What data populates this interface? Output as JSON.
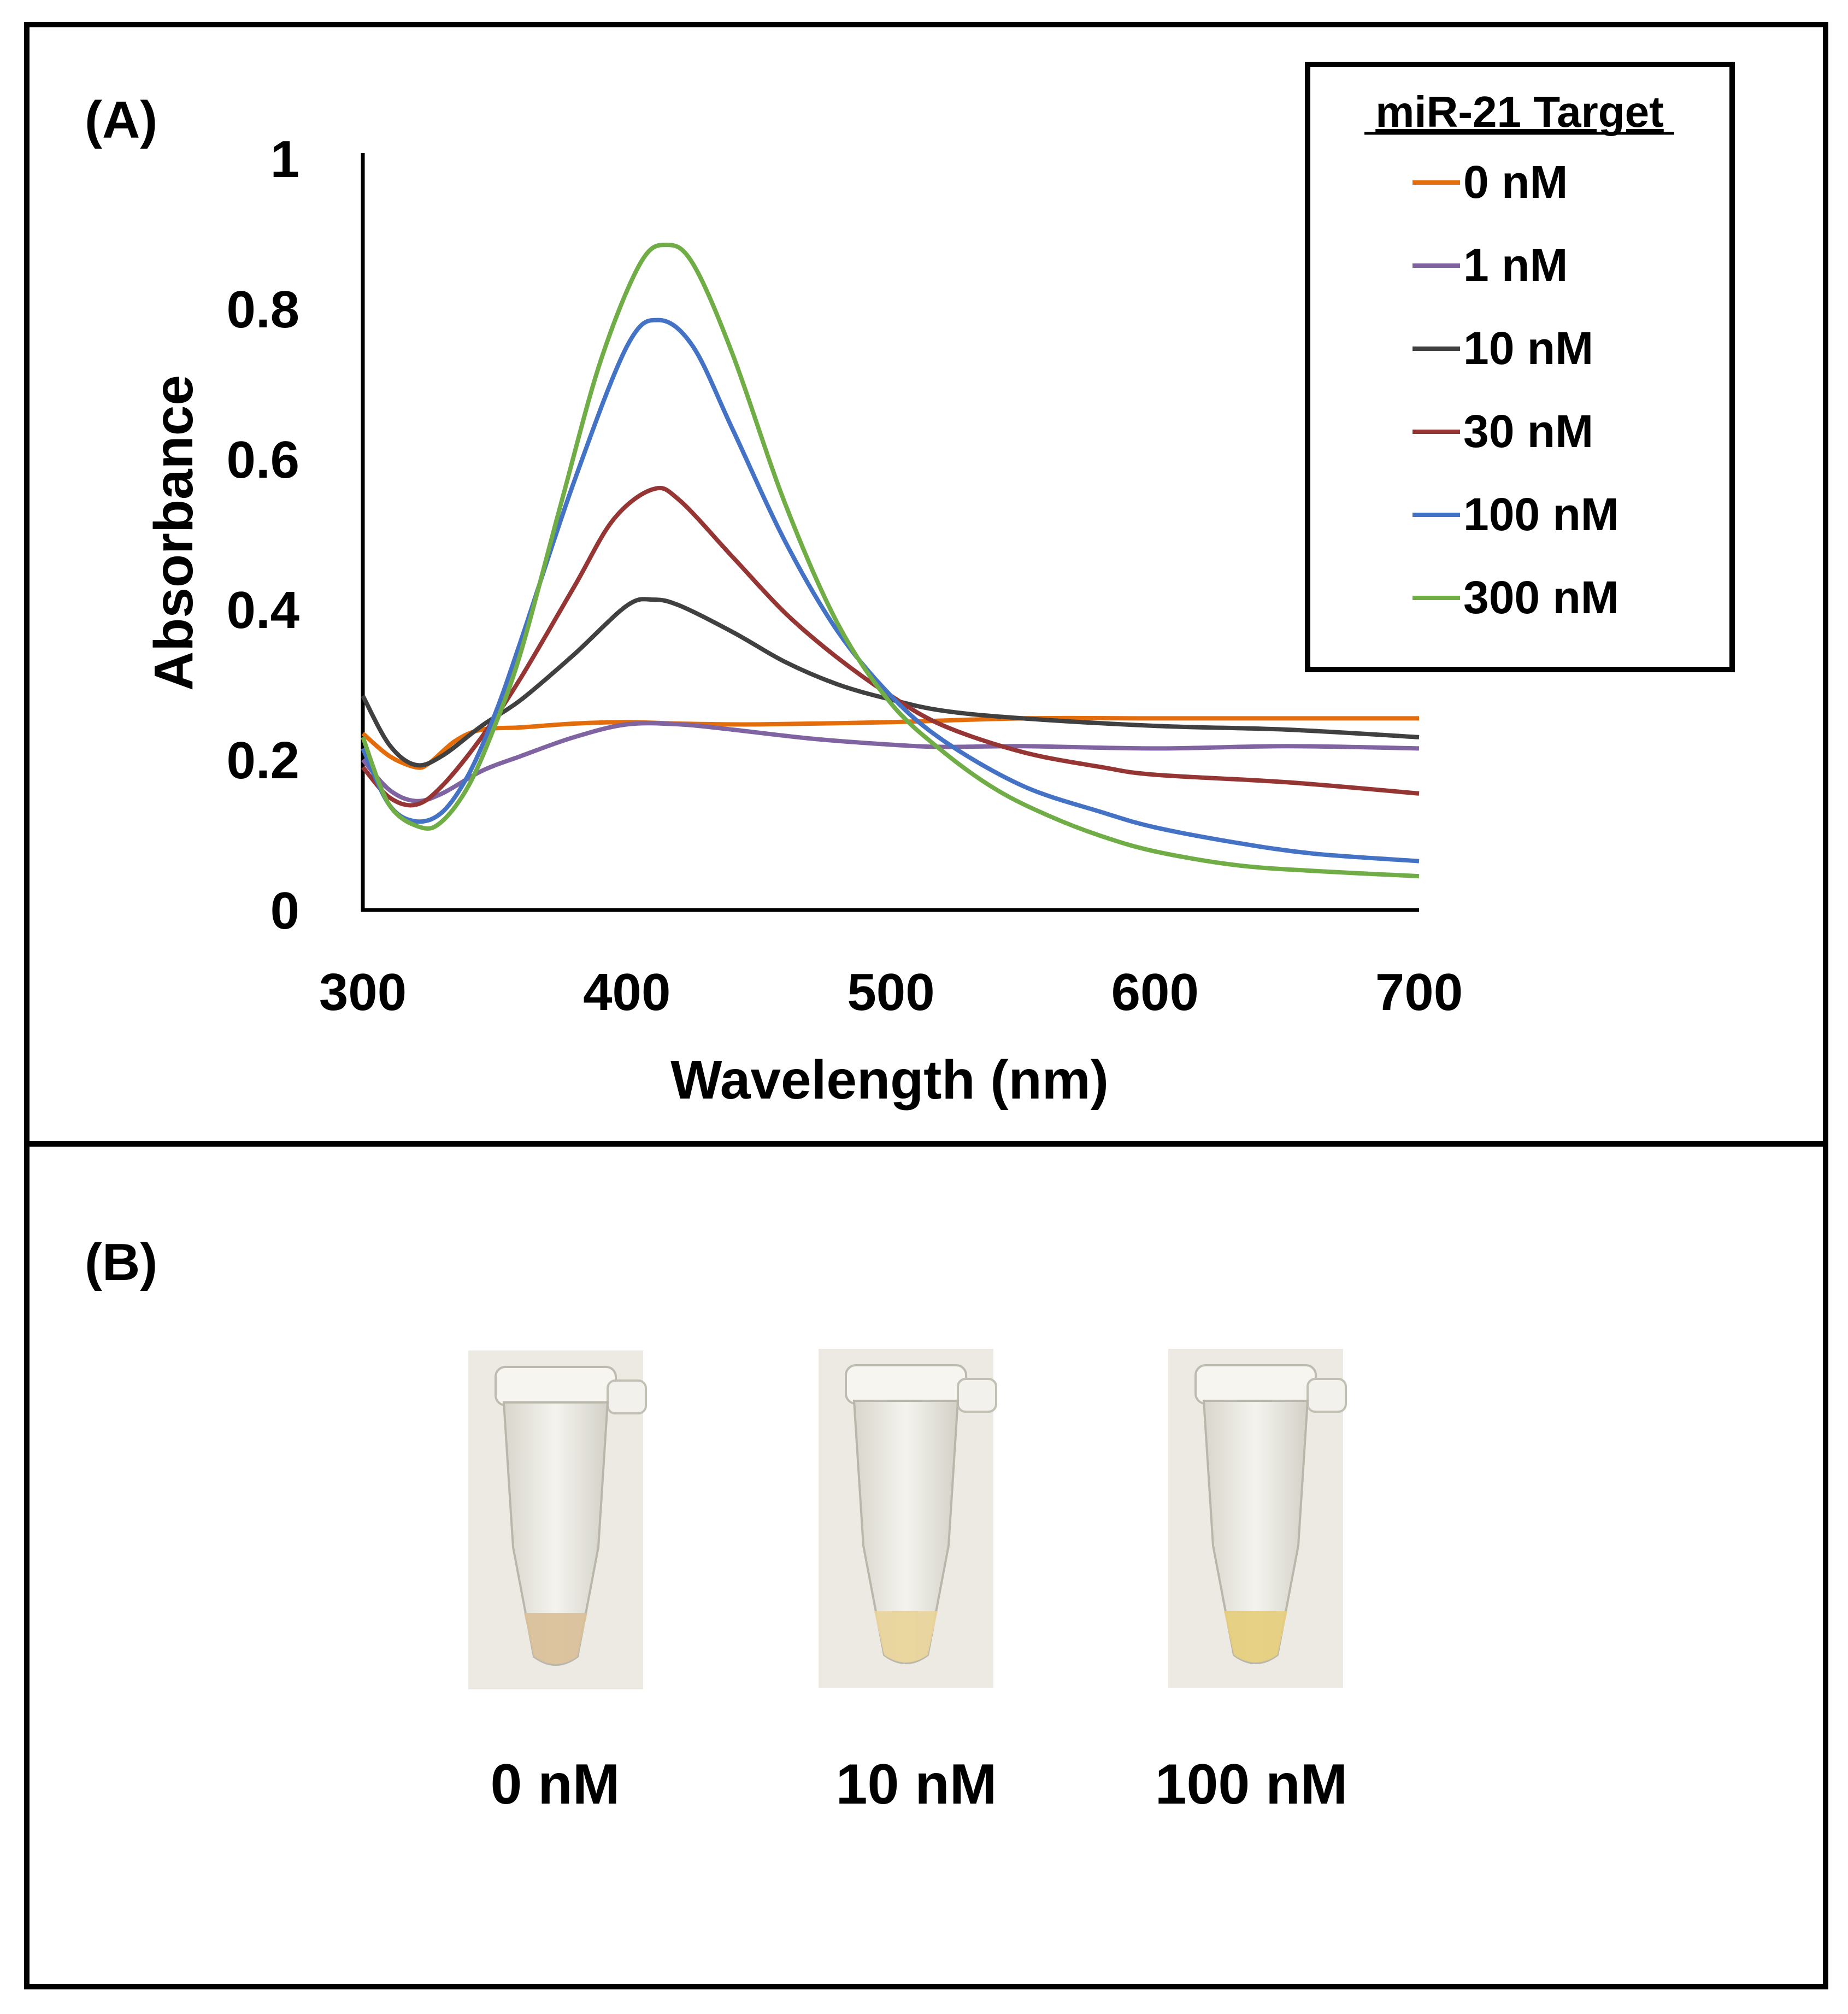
{
  "panel_a": {
    "label": "(A)",
    "chart_data": {
      "type": "line",
      "title": "",
      "xlabel": "Wavelength (nm)",
      "ylabel": "Absorbance",
      "xlim": [
        300,
        700
      ],
      "ylim": [
        0,
        1
      ],
      "xticks": [
        "300",
        "400",
        "500",
        "600",
        "700"
      ],
      "yticks": [
        "0",
        "0.2",
        "0.4",
        "0.6",
        "0.8",
        "1"
      ],
      "grid": false,
      "legend": {
        "title": "miR-21 Target",
        "position": "top-right"
      },
      "series": [
        {
          "name": "0 nM",
          "color": "#E46C0A",
          "x": [
            300,
            310,
            320,
            325,
            335,
            345,
            360,
            380,
            400,
            420,
            450,
            500,
            550,
            600,
            650,
            700
          ],
          "y": [
            0.235,
            0.205,
            0.19,
            0.195,
            0.225,
            0.24,
            0.243,
            0.248,
            0.25,
            0.248,
            0.247,
            0.25,
            0.255,
            0.255,
            0.255,
            0.255
          ]
        },
        {
          "name": "1 nM",
          "color": "#8064A2",
          "x": [
            300,
            310,
            320,
            330,
            345,
            360,
            380,
            400,
            420,
            440,
            470,
            500,
            520,
            550,
            600,
            650,
            700
          ],
          "y": [
            0.2,
            0.16,
            0.145,
            0.155,
            0.185,
            0.205,
            0.23,
            0.247,
            0.247,
            0.24,
            0.228,
            0.22,
            0.217,
            0.218,
            0.215,
            0.218,
            0.215
          ]
        },
        {
          "name": "10 nM",
          "color": "#404040",
          "x": [
            300,
            310,
            320,
            330,
            345,
            360,
            380,
            400,
            410,
            420,
            440,
            460,
            480,
            500,
            520,
            550,
            600,
            650,
            700
          ],
          "y": [
            0.285,
            0.22,
            0.193,
            0.205,
            0.245,
            0.28,
            0.34,
            0.405,
            0.413,
            0.405,
            0.37,
            0.33,
            0.3,
            0.28,
            0.265,
            0.255,
            0.245,
            0.24,
            0.23
          ]
        },
        {
          "name": "30 nM",
          "color": "#963634",
          "x": [
            300,
            310,
            320,
            330,
            345,
            360,
            380,
            395,
            410,
            420,
            440,
            460,
            480,
            500,
            520,
            550,
            580,
            600,
            650,
            700
          ],
          "y": [
            0.19,
            0.15,
            0.14,
            0.165,
            0.23,
            0.31,
            0.43,
            0.52,
            0.56,
            0.545,
            0.47,
            0.395,
            0.335,
            0.285,
            0.245,
            0.21,
            0.19,
            0.18,
            0.17,
            0.155
          ]
        },
        {
          "name": "100 nM",
          "color": "#4472C4",
          "x": [
            300,
            310,
            320,
            330,
            340,
            350,
            360,
            380,
            400,
            412,
            425,
            440,
            460,
            480,
            500,
            520,
            550,
            580,
            600,
            630,
            660,
            700
          ],
          "y": [
            0.215,
            0.14,
            0.118,
            0.13,
            0.18,
            0.26,
            0.36,
            0.57,
            0.75,
            0.785,
            0.75,
            0.64,
            0.49,
            0.37,
            0.285,
            0.225,
            0.165,
            0.13,
            0.11,
            0.09,
            0.075,
            0.065
          ]
        },
        {
          "name": "300 nM",
          "color": "#70AD47",
          "x": [
            300,
            310,
            322,
            330,
            340,
            350,
            360,
            375,
            390,
            405,
            415,
            425,
            440,
            460,
            480,
            500,
            520,
            540,
            560,
            580,
            600,
            630,
            660,
            700
          ],
          "y": [
            0.23,
            0.14,
            0.11,
            0.118,
            0.165,
            0.245,
            0.345,
            0.54,
            0.73,
            0.86,
            0.885,
            0.86,
            0.74,
            0.54,
            0.38,
            0.275,
            0.21,
            0.16,
            0.125,
            0.098,
            0.078,
            0.06,
            0.052,
            0.045
          ]
        }
      ]
    }
  },
  "panel_b": {
    "label": "(B)",
    "tubes": [
      {
        "caption": "0 nM",
        "liquid_color": "#d9c19a"
      },
      {
        "caption": "10 nM",
        "liquid_color": "#e9d49b"
      },
      {
        "caption": "100 nM",
        "liquid_color": "#e6cf7e"
      }
    ]
  }
}
